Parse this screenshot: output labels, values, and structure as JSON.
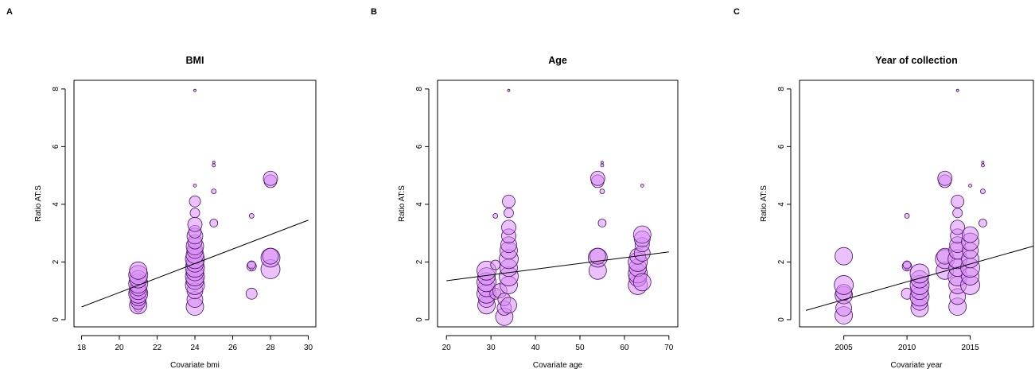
{
  "chart_data": [
    {
      "panel": "A",
      "type": "scatter",
      "title": "BMI",
      "xlabel": "Covariate bmi",
      "ylabel": "Ratio AT:S",
      "xlim": [
        17.6,
        30.4
      ],
      "ylim": [
        -0.25,
        8.3
      ],
      "xticks": [
        18,
        20,
        22,
        24,
        26,
        28,
        30
      ],
      "yticks": [
        0,
        2,
        4,
        6,
        8
      ],
      "regression": {
        "x1": 18,
        "y1": 0.44,
        "x2": 30,
        "y2": 3.45
      },
      "points": [
        {
          "x": 21,
          "y": 0.4,
          "r": 5
        },
        {
          "x": 21,
          "y": 0.5,
          "r": 11
        },
        {
          "x": 21,
          "y": 0.6,
          "r": 9
        },
        {
          "x": 21,
          "y": 0.75,
          "r": 10
        },
        {
          "x": 21,
          "y": 0.9,
          "r": 12
        },
        {
          "x": 21,
          "y": 1.0,
          "r": 11
        },
        {
          "x": 21,
          "y": 1.1,
          "r": 10
        },
        {
          "x": 21,
          "y": 1.25,
          "r": 12
        },
        {
          "x": 21,
          "y": 1.4,
          "r": 11
        },
        {
          "x": 21,
          "y": 1.55,
          "r": 12
        },
        {
          "x": 21,
          "y": 1.7,
          "r": 11
        },
        {
          "x": 24,
          "y": 0.45,
          "r": 11
        },
        {
          "x": 24,
          "y": 0.7,
          "r": 10
        },
        {
          "x": 24,
          "y": 1.0,
          "r": 10
        },
        {
          "x": 24,
          "y": 1.2,
          "r": 12
        },
        {
          "x": 24,
          "y": 1.35,
          "r": 11
        },
        {
          "x": 24,
          "y": 1.5,
          "r": 12
        },
        {
          "x": 24,
          "y": 1.65,
          "r": 11
        },
        {
          "x": 24,
          "y": 1.8,
          "r": 12
        },
        {
          "x": 24,
          "y": 1.95,
          "r": 11
        },
        {
          "x": 24,
          "y": 2.1,
          "r": 12
        },
        {
          "x": 24,
          "y": 2.25,
          "r": 11
        },
        {
          "x": 24,
          "y": 2.4,
          "r": 10
        },
        {
          "x": 24,
          "y": 2.55,
          "r": 11
        },
        {
          "x": 24,
          "y": 2.7,
          "r": 9
        },
        {
          "x": 24,
          "y": 2.9,
          "r": 10
        },
        {
          "x": 24,
          "y": 3.05,
          "r": 8
        },
        {
          "x": 24,
          "y": 3.3,
          "r": 9
        },
        {
          "x": 24,
          "y": 3.7,
          "r": 6
        },
        {
          "x": 24,
          "y": 4.1,
          "r": 7
        },
        {
          "x": 24,
          "y": 4.65,
          "r": 2
        },
        {
          "x": 24,
          "y": 7.95,
          "r": 1.5
        },
        {
          "x": 25,
          "y": 3.35,
          "r": 5
        },
        {
          "x": 25,
          "y": 4.45,
          "r": 3
        },
        {
          "x": 25,
          "y": 5.35,
          "r": 2
        },
        {
          "x": 25,
          "y": 5.45,
          "r": 1.5
        },
        {
          "x": 27,
          "y": 0.9,
          "r": 7
        },
        {
          "x": 27,
          "y": 1.75,
          "r": 2
        },
        {
          "x": 27,
          "y": 1.85,
          "r": 6
        },
        {
          "x": 27,
          "y": 1.9,
          "r": 5
        },
        {
          "x": 27,
          "y": 3.6,
          "r": 3
        },
        {
          "x": 28,
          "y": 1.75,
          "r": 12
        },
        {
          "x": 28,
          "y": 2.15,
          "r": 12
        },
        {
          "x": 28,
          "y": 2.2,
          "r": 10
        },
        {
          "x": 28,
          "y": 4.8,
          "r": 8
        },
        {
          "x": 28,
          "y": 4.9,
          "r": 9
        }
      ]
    },
    {
      "panel": "B",
      "type": "scatter",
      "title": "Age",
      "xlabel": "Covariate age",
      "ylabel": "Ratio AT:S",
      "xlim": [
        18.0,
        72.0
      ],
      "ylim": [
        -0.25,
        8.3
      ],
      "xticks": [
        20,
        30,
        40,
        50,
        60,
        70
      ],
      "yticks": [
        0,
        2,
        4,
        6,
        8
      ],
      "regression": {
        "x1": 20,
        "y1": 1.35,
        "x2": 70,
        "y2": 2.35
      },
      "points": [
        {
          "x": 29,
          "y": 0.5,
          "r": 11
        },
        {
          "x": 29,
          "y": 0.7,
          "r": 10
        },
        {
          "x": 29,
          "y": 0.9,
          "r": 12
        },
        {
          "x": 29,
          "y": 1.1,
          "r": 11
        },
        {
          "x": 29,
          "y": 1.3,
          "r": 12
        },
        {
          "x": 29,
          "y": 1.5,
          "r": 11
        },
        {
          "x": 29,
          "y": 1.7,
          "r": 12
        },
        {
          "x": 31,
          "y": 0.9,
          "r": 7
        },
        {
          "x": 31,
          "y": 1.9,
          "r": 6
        },
        {
          "x": 31,
          "y": 3.6,
          "r": 3
        },
        {
          "x": 32,
          "y": 1.0,
          "r": 9
        },
        {
          "x": 33,
          "y": 0.1,
          "r": 11
        },
        {
          "x": 33,
          "y": 0.4,
          "r": 9
        },
        {
          "x": 33,
          "y": 0.7,
          "r": 8
        },
        {
          "x": 34,
          "y": 0.5,
          "r": 10
        },
        {
          "x": 34,
          "y": 1.2,
          "r": 11
        },
        {
          "x": 34,
          "y": 1.5,
          "r": 12
        },
        {
          "x": 34,
          "y": 1.8,
          "r": 11
        },
        {
          "x": 34,
          "y": 2.1,
          "r": 12
        },
        {
          "x": 34,
          "y": 2.4,
          "r": 11
        },
        {
          "x": 34,
          "y": 2.6,
          "r": 10
        },
        {
          "x": 34,
          "y": 2.9,
          "r": 9
        },
        {
          "x": 34,
          "y": 3.2,
          "r": 9
        },
        {
          "x": 34,
          "y": 3.7,
          "r": 6
        },
        {
          "x": 34,
          "y": 4.1,
          "r": 8
        },
        {
          "x": 34,
          "y": 7.95,
          "r": 1.5
        },
        {
          "x": 54,
          "y": 1.7,
          "r": 11
        },
        {
          "x": 54,
          "y": 2.15,
          "r": 12
        },
        {
          "x": 54,
          "y": 2.2,
          "r": 10
        },
        {
          "x": 54,
          "y": 4.8,
          "r": 8
        },
        {
          "x": 54,
          "y": 4.9,
          "r": 9
        },
        {
          "x": 55,
          "y": 3.35,
          "r": 5
        },
        {
          "x": 55,
          "y": 4.45,
          "r": 3
        },
        {
          "x": 55,
          "y": 5.35,
          "r": 2
        },
        {
          "x": 55,
          "y": 5.45,
          "r": 1.5
        },
        {
          "x": 63,
          "y": 1.2,
          "r": 12
        },
        {
          "x": 63,
          "y": 1.45,
          "r": 11
        },
        {
          "x": 63,
          "y": 1.6,
          "r": 12
        },
        {
          "x": 63,
          "y": 1.8,
          "r": 11
        },
        {
          "x": 63,
          "y": 2.0,
          "r": 12
        },
        {
          "x": 63,
          "y": 2.2,
          "r": 10
        },
        {
          "x": 64,
          "y": 1.3,
          "r": 11
        },
        {
          "x": 64,
          "y": 2.3,
          "r": 10
        },
        {
          "x": 64,
          "y": 2.6,
          "r": 9
        },
        {
          "x": 64,
          "y": 2.8,
          "r": 10
        },
        {
          "x": 64,
          "y": 2.95,
          "r": 11
        },
        {
          "x": 64,
          "y": 4.65,
          "r": 2
        }
      ]
    },
    {
      "panel": "C",
      "type": "scatter",
      "title": "Year of collection",
      "xlabel": "Covariate year",
      "ylabel": "Ratio AT:S",
      "xlim": [
        2001.5,
        2020.0
      ],
      "ylim": [
        -0.25,
        8.3
      ],
      "xticks": [
        2005,
        2010,
        2015
      ],
      "yticks": [
        0,
        2,
        4,
        6,
        8
      ],
      "regression": {
        "x1": 2002,
        "y1": 0.32,
        "x2": 2020,
        "y2": 2.55
      },
      "points": [
        {
          "x": 2005,
          "y": 0.15,
          "r": 11
        },
        {
          "x": 2005,
          "y": 0.4,
          "r": 10
        },
        {
          "x": 2005,
          "y": 0.85,
          "r": 11
        },
        {
          "x": 2005,
          "y": 0.95,
          "r": 10
        },
        {
          "x": 2005,
          "y": 1.2,
          "r": 12
        },
        {
          "x": 2005,
          "y": 2.2,
          "r": 11
        },
        {
          "x": 2010,
          "y": 0.9,
          "r": 7
        },
        {
          "x": 2010,
          "y": 1.75,
          "r": 2
        },
        {
          "x": 2010,
          "y": 1.85,
          "r": 6
        },
        {
          "x": 2010,
          "y": 1.9,
          "r": 5
        },
        {
          "x": 2010,
          "y": 3.6,
          "r": 3
        },
        {
          "x": 2011,
          "y": 0.4,
          "r": 11
        },
        {
          "x": 2011,
          "y": 0.6,
          "r": 10
        },
        {
          "x": 2011,
          "y": 0.8,
          "r": 12
        },
        {
          "x": 2011,
          "y": 1.0,
          "r": 11
        },
        {
          "x": 2011,
          "y": 1.2,
          "r": 12
        },
        {
          "x": 2011,
          "y": 1.4,
          "r": 11
        },
        {
          "x": 2011,
          "y": 1.6,
          "r": 12
        },
        {
          "x": 2013,
          "y": 1.7,
          "r": 11
        },
        {
          "x": 2013,
          "y": 2.1,
          "r": 12
        },
        {
          "x": 2013,
          "y": 2.2,
          "r": 10
        },
        {
          "x": 2013,
          "y": 4.8,
          "r": 8
        },
        {
          "x": 2013,
          "y": 4.9,
          "r": 9
        },
        {
          "x": 2014,
          "y": 0.45,
          "r": 11
        },
        {
          "x": 2014,
          "y": 0.8,
          "r": 10
        },
        {
          "x": 2014,
          "y": 1.2,
          "r": 11
        },
        {
          "x": 2014,
          "y": 1.5,
          "r": 12
        },
        {
          "x": 2014,
          "y": 1.8,
          "r": 11
        },
        {
          "x": 2014,
          "y": 2.1,
          "r": 12
        },
        {
          "x": 2014,
          "y": 2.4,
          "r": 11
        },
        {
          "x": 2014,
          "y": 2.6,
          "r": 10
        },
        {
          "x": 2014,
          "y": 2.9,
          "r": 9
        },
        {
          "x": 2014,
          "y": 3.2,
          "r": 9
        },
        {
          "x": 2014,
          "y": 3.7,
          "r": 6
        },
        {
          "x": 2014,
          "y": 4.1,
          "r": 8
        },
        {
          "x": 2014,
          "y": 7.95,
          "r": 1.5
        },
        {
          "x": 2015,
          "y": 1.2,
          "r": 12
        },
        {
          "x": 2015,
          "y": 1.5,
          "r": 11
        },
        {
          "x": 2015,
          "y": 1.8,
          "r": 12
        },
        {
          "x": 2015,
          "y": 2.1,
          "r": 11
        },
        {
          "x": 2015,
          "y": 2.4,
          "r": 10
        },
        {
          "x": 2015,
          "y": 2.7,
          "r": 11
        },
        {
          "x": 2015,
          "y": 2.95,
          "r": 10
        },
        {
          "x": 2015,
          "y": 4.65,
          "r": 2
        },
        {
          "x": 2016,
          "y": 3.35,
          "r": 5
        },
        {
          "x": 2016,
          "y": 4.45,
          "r": 3
        },
        {
          "x": 2016,
          "y": 5.35,
          "r": 2
        },
        {
          "x": 2016,
          "y": 5.45,
          "r": 1.5
        }
      ]
    }
  ],
  "colors": {
    "point_fill": "#d98ef5",
    "point_stroke": "#4a1465",
    "axis": "#000000",
    "line": "#000000"
  }
}
